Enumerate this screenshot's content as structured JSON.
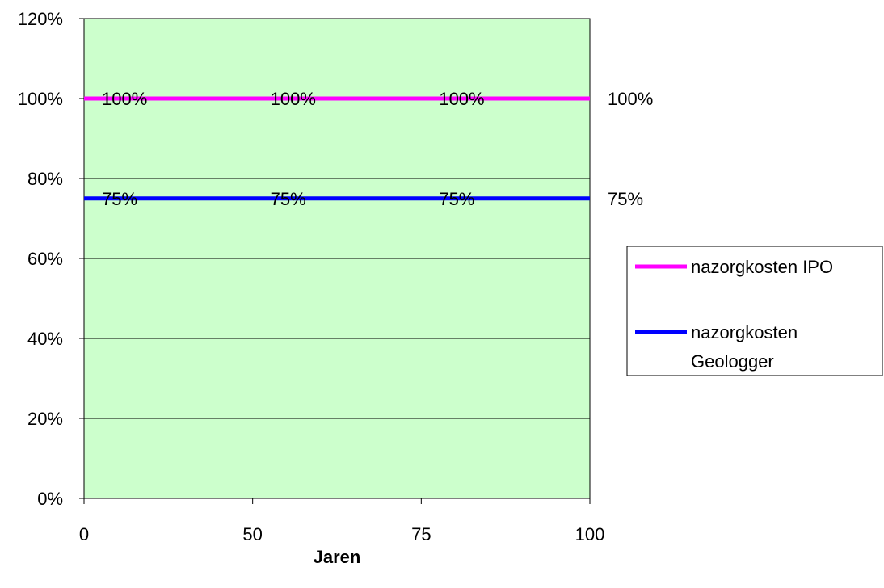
{
  "chart_data": {
    "type": "line",
    "categories": [
      "0",
      "50",
      "75",
      "100"
    ],
    "xlabel": "Jaren",
    "ylabel": "",
    "ylim": [
      0,
      120
    ],
    "yticks": [
      "0%",
      "20%",
      "40%",
      "60%",
      "80%",
      "100%",
      "120%"
    ],
    "grid": true,
    "legend_position": "right",
    "plot_background": "#ccffcc",
    "series": [
      {
        "name": "nazorgkosten IPO",
        "color": "#ff00ff",
        "values": [
          100,
          100,
          100,
          100
        ],
        "labels": [
          "100%",
          "100%",
          "100%",
          "100%"
        ]
      },
      {
        "name": "nazorgkosten Geologger",
        "color": "#0000ff",
        "values": [
          75,
          75,
          75,
          75
        ],
        "labels": [
          "75%",
          "75%",
          "75%",
          "75%"
        ]
      }
    ]
  }
}
